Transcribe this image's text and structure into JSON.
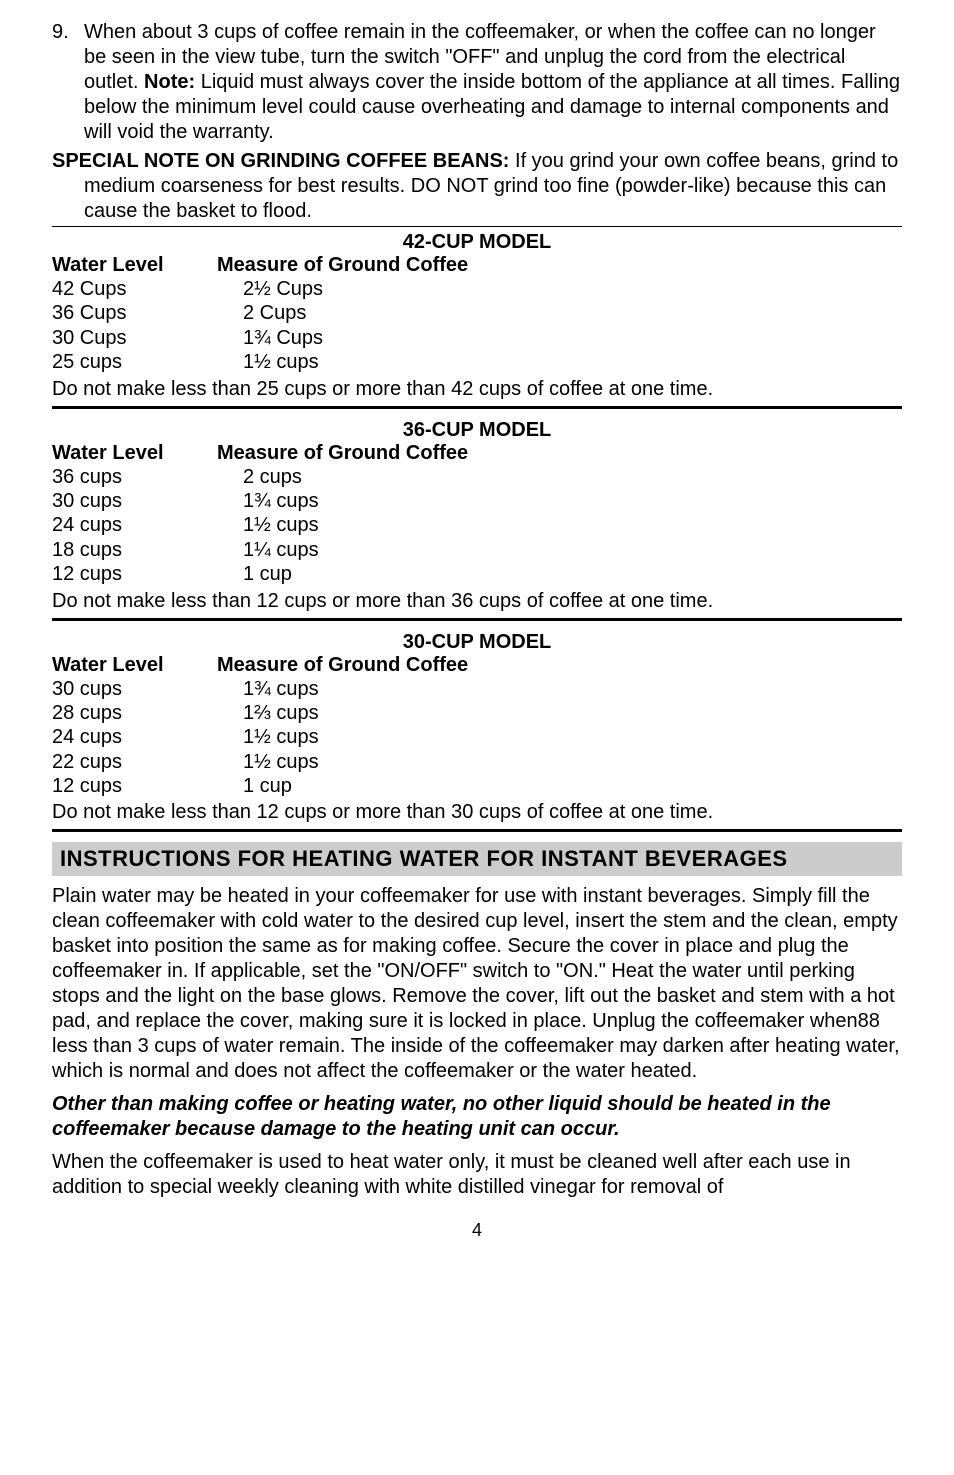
{
  "list": {
    "item9": {
      "number": "9.",
      "text_pre": "When about 3 cups of coffee remain in the coffeemaker, or when the coffee can no longer be seen in the view tube, turn the switch \"OFF\" and unplug the cord from the electrical outlet. ",
      "note_label": "Note:",
      "text_post": " Liquid must always cover the inside bottom of the appliance at all times. Falling below the minimum level could cause overheating and damage to internal components and will void the warranty."
    }
  },
  "special": {
    "label": "SPECIAL NOTE ON GRINDING COFFEE BEANS:",
    "text": "  If you grind your own coffee beans, grind to medium coarseness for best results.  DO NOT grind too fine (powder-like) because this can cause the basket to flood."
  },
  "tables": {
    "head_water": "Water Level",
    "head_measure": "Measure of Ground Coffee",
    "m42": {
      "title": "42-CUP MODEL",
      "rows": [
        {
          "w": "42 Cups",
          "m": "2½ Cups"
        },
        {
          "w": "36 Cups",
          "m": "2 Cups"
        },
        {
          "w": "30 Cups",
          "m": "1¾ Cups"
        },
        {
          "w": "25 cups",
          "m": "1½ cups"
        }
      ],
      "note": "Do not make less than 25 cups or more than 42 cups of coffee at one time."
    },
    "m36": {
      "title": "36-CUP MODEL",
      "rows": [
        {
          "w": "36 cups",
          "m": "2 cups"
        },
        {
          "w": "30 cups",
          "m": "1¾ cups"
        },
        {
          "w": "24 cups",
          "m": "1½ cups"
        },
        {
          "w": "18 cups",
          "m": "1¼ cups"
        },
        {
          "w": "12 cups",
          "m": "1 cup"
        }
      ],
      "note": "Do not make less than 12 cups or more than 36 cups of coffee at one time."
    },
    "m30": {
      "title": "30-CUP MODEL",
      "rows": [
        {
          "w": "30 cups",
          "m": "1¾ cups"
        },
        {
          "w": "28 cups",
          "m": "1⅔ cups"
        },
        {
          "w": "24 cups",
          "m": "1½ cups"
        },
        {
          "w": "22 cups",
          "m": "1½ cups"
        },
        {
          "w": "12 cups",
          "m": "1 cup"
        }
      ],
      "note": "Do not make less than 12 cups or more than 30 cups of coffee at one time."
    }
  },
  "section": {
    "title": "INSTRUCTIONS FOR HEATING WATER FOR INSTANT BEVERAGES"
  },
  "para1": "Plain water may be heated in your coffeemaker for use with instant beverages.  Simply fill the clean coffeemaker with cold water to the desired cup level, insert the stem and the clean, empty basket into position the same as for making coffee.  Secure the cover in place and plug the coffeemaker in.  If applicable, set the \"ON/OFF\" switch to \"ON.\"  Heat the water until perking stops and the light on the base glows.  Remove the cover, lift out the basket and stem with a hot pad, and replace the cover, making sure it is locked in place.  Unplug the coffeemaker when88 less than 3 cups of water remain.  The inside of the coffeemaker may darken after heating water, which is normal and does not affect the coffeemaker or the water heated.",
  "warning": "Other than making coffee or heating water, no other liquid should be heated in the coffeemaker because damage to the heating unit can occur.",
  "para2": "When the coffeemaker is used to heat water only, it must be cleaned well after each use in addition to special weekly cleaning with white distilled vinegar for removal of",
  "page_number": "4"
}
